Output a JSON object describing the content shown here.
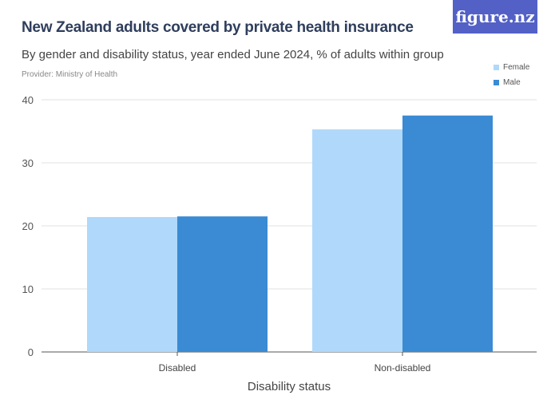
{
  "chart_data": {
    "type": "bar",
    "title": "New Zealand adults covered by private health insurance",
    "subtitle": "By gender and disability status, year ended June 2024, % of adults within group",
    "provider": "Provider: Ministry of Health",
    "xlabel": "Disability status",
    "ylabel": "",
    "categories": [
      "Disabled",
      "Non-disabled"
    ],
    "series": [
      {
        "name": "Female",
        "color": "#b0d8fa",
        "values": [
          21.4,
          35.3
        ]
      },
      {
        "name": "Male",
        "color": "#3a8bd4",
        "values": [
          21.5,
          37.5
        ]
      }
    ],
    "ylim": [
      0,
      40
    ],
    "yticks": [
      "0",
      "10",
      "20",
      "30",
      "40"
    ],
    "grid": true,
    "legend": "top-right"
  },
  "logo": "figure.nz"
}
